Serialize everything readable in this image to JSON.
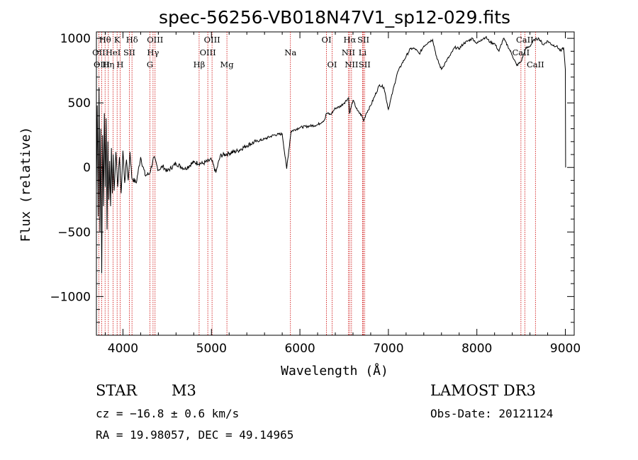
{
  "chart_data": {
    "type": "line",
    "title": "spec-56256-VB018N47V1_sp12-029.fits",
    "xlabel": "Wavelength (Å)",
    "ylabel": "Flux (relative)",
    "xlim": [
      3700,
      9100
    ],
    "ylim": [
      -1300,
      1050
    ],
    "xticks": [
      4000,
      5000,
      6000,
      7000,
      8000,
      9000
    ],
    "xtick_labels": [
      "4000",
      "5000",
      "6000",
      "7000",
      "8000",
      "9000"
    ],
    "yticks": [
      -1000,
      -500,
      0,
      500,
      1000
    ],
    "ytick_labels": [
      "−1000",
      "−500",
      "0",
      "500",
      "1000"
    ],
    "grid": false,
    "series": [
      {
        "name": "flux",
        "x": [
          3700,
          3710,
          3720,
          3730,
          3740,
          3750,
          3760,
          3770,
          3780,
          3790,
          3800,
          3810,
          3820,
          3830,
          3840,
          3850,
          3860,
          3870,
          3880,
          3890,
          3900,
          3920,
          3940,
          3960,
          3980,
          4000,
          4020,
          4040,
          4060,
          4080,
          4100,
          4150,
          4200,
          4250,
          4300,
          4350,
          4400,
          4450,
          4500,
          4600,
          4700,
          4800,
          4900,
          5000,
          5050,
          5100,
          5200,
          5300,
          5400,
          5500,
          5600,
          5700,
          5800,
          5850,
          5900,
          6000,
          6100,
          6200,
          6280,
          6300,
          6350,
          6400,
          6450,
          6500,
          6550,
          6560,
          6600,
          6650,
          6700,
          6720,
          6750,
          6800,
          6850,
          6900,
          6950,
          7000,
          7050,
          7100,
          7150,
          7200,
          7250,
          7300,
          7350,
          7400,
          7450,
          7500,
          7550,
          7600,
          7650,
          7700,
          7750,
          7800,
          7850,
          7900,
          7950,
          8000,
          8050,
          8100,
          8150,
          8200,
          8250,
          8300,
          8350,
          8400,
          8450,
          8500,
          8550,
          8600,
          8650,
          8700,
          8750,
          8800,
          8850,
          8900,
          8950,
          8980,
          9000,
          9003
        ],
        "y": [
          -200,
          480,
          -380,
          620,
          -500,
          300,
          -820,
          250,
          -300,
          420,
          -150,
          380,
          -480,
          200,
          -250,
          50,
          -300,
          150,
          -200,
          100,
          -180,
          120,
          -150,
          80,
          -200,
          130,
          -120,
          60,
          -100,
          120,
          -80,
          -120,
          80,
          -60,
          -50,
          80,
          -20,
          10,
          -30,
          30,
          -10,
          40,
          30,
          60,
          -40,
          90,
          110,
          130,
          170,
          200,
          220,
          250,
          260,
          -10,
          280,
          310,
          320,
          330,
          370,
          420,
          410,
          460,
          470,
          500,
          540,
          420,
          520,
          440,
          400,
          360,
          420,
          480,
          560,
          640,
          620,
          450,
          590,
          730,
          800,
          860,
          920,
          920,
          880,
          940,
          970,
          990,
          840,
          760,
          820,
          870,
          930,
          920,
          960,
          980,
          1000,
          960,
          990,
          1010,
          970,
          960,
          900,
          1000,
          940,
          870,
          790,
          820,
          920,
          940,
          990,
          1000,
          950,
          980,
          950,
          940,
          900,
          930,
          760,
          0
        ]
      }
    ],
    "emission_lines": [
      {
        "label": "Hθ",
        "wavelength": 3798,
        "row": 1
      },
      {
        "label": "K",
        "wavelength": 3934,
        "row": 1
      },
      {
        "label": "Hδ",
        "wavelength": 4102,
        "row": 1
      },
      {
        "label": "OIII",
        "wavelength": 4363,
        "row": 1
      },
      {
        "label": "OIII",
        "wavelength": 5007,
        "row": 1
      },
      {
        "label": "OI",
        "wavelength": 6300,
        "row": 1
      },
      {
        "label": "Hα",
        "wavelength": 6563,
        "row": 1
      },
      {
        "label": "SII",
        "wavelength": 6717,
        "row": 1
      },
      {
        "label": "CaII",
        "wavelength": 8542,
        "row": 1
      },
      {
        "label": "OII",
        "wavelength": 3727,
        "row": 2
      },
      {
        "label": "HeI",
        "wavelength": 3889,
        "row": 2
      },
      {
        "label": "SII",
        "wavelength": 4072,
        "row": 2
      },
      {
        "label": "Hγ",
        "wavelength": 4340,
        "row": 2
      },
      {
        "label": "OIII",
        "wavelength": 4959,
        "row": 2
      },
      {
        "label": "Na",
        "wavelength": 5893,
        "row": 2
      },
      {
        "label": "NII",
        "wavelength": 6548,
        "row": 2
      },
      {
        "label": "Li",
        "wavelength": 6708,
        "row": 2
      },
      {
        "label": "CaII",
        "wavelength": 8498,
        "row": 2
      },
      {
        "label": "OIII",
        "wavelength": 3760,
        "row": 3
      },
      {
        "label": "Hη",
        "wavelength": 3835,
        "row": 3
      },
      {
        "label": "H",
        "wavelength": 3968,
        "row": 3
      },
      {
        "label": "G",
        "wavelength": 4305,
        "row": 3
      },
      {
        "label": "Hβ",
        "wavelength": 4861,
        "row": 3
      },
      {
        "label": "Mg",
        "wavelength": 5175,
        "row": 3
      },
      {
        "label": "OI",
        "wavelength": 6364,
        "row": 3
      },
      {
        "label": "NII",
        "wavelength": 6583,
        "row": 3
      },
      {
        "label": "SII",
        "wavelength": 6731,
        "row": 3
      },
      {
        "label": "CaII",
        "wavelength": 8662,
        "row": 3
      }
    ]
  },
  "footer": {
    "class_label": "STAR",
    "subclass": "M3",
    "survey": "LAMOST DR3",
    "cz": "cz = −16.8 ± 0.6 km/s",
    "obs_date": "Obs-Date: 20121124",
    "coords": "RA =  19.98057, DEC =  49.14965"
  }
}
